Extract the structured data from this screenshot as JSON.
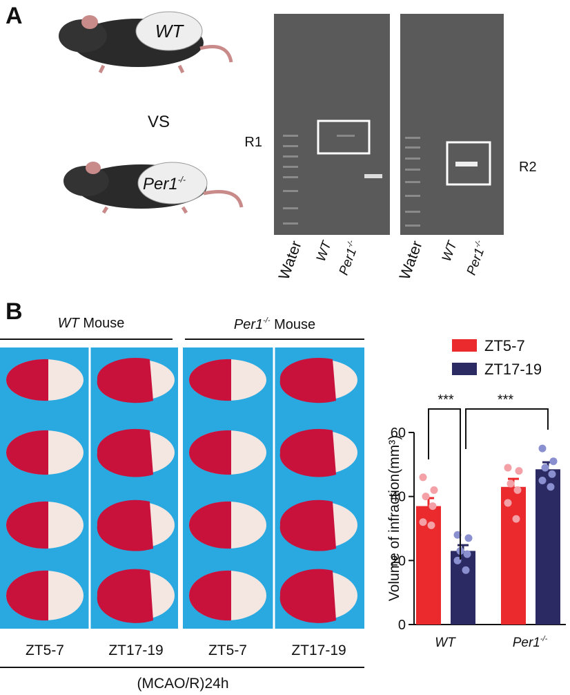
{
  "panel_a": {
    "label": "A",
    "mouse1": "WT",
    "mouse2": {
      "name": "Per1",
      "sup": "-/-"
    },
    "vs": "VS",
    "gel1": {
      "region": "R1",
      "lanes": [
        "Water",
        "WT",
        {
          "name": "Per1",
          "sup": "-/-"
        }
      ]
    },
    "gel2": {
      "region": "R2",
      "lanes": [
        "Water",
        "WT",
        {
          "name": "Per1",
          "sup": "-/-"
        }
      ]
    }
  },
  "panel_b": {
    "label": "B",
    "group1": {
      "name": "WT",
      "suffix": "Mouse"
    },
    "group2": {
      "name": "Per1",
      "sup": "-/-",
      "suffix": "Mouse"
    },
    "columns": [
      "ZT5-7",
      "ZT17-19",
      "ZT5-7",
      "ZT17-19"
    ],
    "condition": "(MCAO/R)24h"
  },
  "chart_data": {
    "type": "bar",
    "ylabel": "Volume of infraction(mm³)",
    "categories": [
      "WT",
      "Per1"
    ],
    "category_sups": [
      null,
      "-/-"
    ],
    "series": [
      {
        "name": "ZT5-7",
        "color": "#ea2a2c",
        "point_color": "#f3a0a6",
        "values": [
          37,
          43
        ],
        "errors": [
          2.5,
          2.5
        ],
        "points": [
          [
            46,
            42,
            40,
            37,
            32,
            31
          ],
          [
            49,
            48,
            44,
            42,
            38,
            33
          ]
        ]
      },
      {
        "name": "ZT17-19",
        "color": "#2b2a63",
        "point_color": "#8a8fd0",
        "values": [
          23,
          48.5
        ],
        "errors": [
          1.8,
          2.2
        ],
        "points": [
          [
            28,
            27,
            23,
            22,
            20,
            17
          ],
          [
            55,
            51,
            49,
            47,
            45,
            43
          ]
        ]
      }
    ],
    "significance": [
      "***",
      "***"
    ],
    "ylim": [
      0,
      60
    ],
    "yticks": [
      0,
      20,
      40,
      60
    ]
  }
}
